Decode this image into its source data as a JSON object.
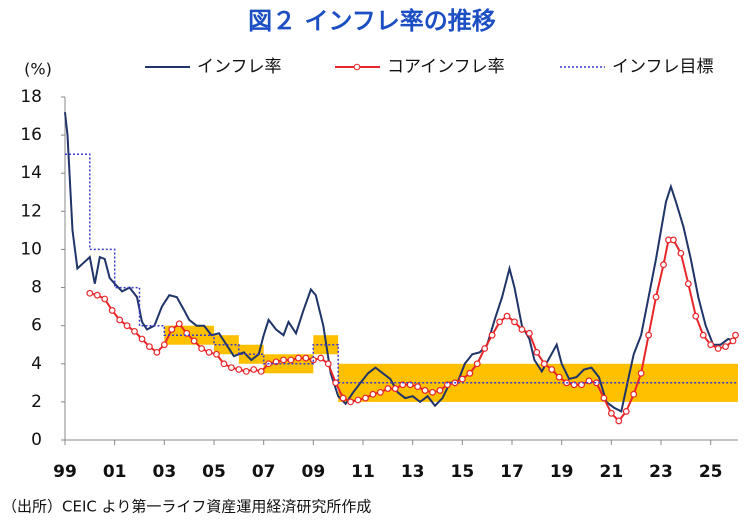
{
  "chart_data": {
    "type": "line",
    "title": "図２ インフレ率の推移",
    "y_label": "(%)",
    "note": "（出所）CEIC より第一ライフ資産運用経済研究所作成",
    "xlim": [
      1999,
      2026.1
    ],
    "ylim": [
      0,
      18
    ],
    "xticks": [
      {
        "value": 1999,
        "label": "99"
      },
      {
        "value": 2001,
        "label": "01"
      },
      {
        "value": 2003,
        "label": "03"
      },
      {
        "value": 2005,
        "label": "05"
      },
      {
        "value": 2007,
        "label": "07"
      },
      {
        "value": 2009,
        "label": "09"
      },
      {
        "value": 2011,
        "label": "11"
      },
      {
        "value": 2013,
        "label": "13"
      },
      {
        "value": 2015,
        "label": "15"
      },
      {
        "value": 2017,
        "label": "17"
      },
      {
        "value": 2019,
        "label": "19"
      },
      {
        "value": 2021,
        "label": "21"
      },
      {
        "value": 2023,
        "label": "23"
      },
      {
        "value": 2025,
        "label": "25"
      }
    ],
    "yticks": [
      0,
      2,
      4,
      6,
      8,
      10,
      12,
      14,
      16,
      18
    ],
    "grid": false,
    "legend": "top-right",
    "series": [
      {
        "name": "インフレ率",
        "color": "#1f3468",
        "style": "solid",
        "x": [
          1999.0,
          1999.1,
          1999.3,
          1999.5,
          1999.75,
          2000.0,
          2000.2,
          2000.4,
          2000.6,
          2000.8,
          2001.0,
          2001.3,
          2001.6,
          2001.9,
          2002.1,
          2002.3,
          2002.6,
          2002.9,
          2003.2,
          2003.5,
          2003.8,
          2004.0,
          2004.3,
          2004.6,
          2004.9,
          2005.2,
          2005.5,
          2005.8,
          2006.2,
          2006.5,
          2006.8,
          2007.0,
          2007.2,
          2007.5,
          2007.8,
          2008.0,
          2008.3,
          2008.6,
          2008.9,
          2009.1,
          2009.4,
          2009.7,
          2010.0,
          2010.3,
          2010.6,
          2010.9,
          2011.2,
          2011.5,
          2011.8,
          2012.1,
          2012.4,
          2012.7,
          2013.0,
          2013.3,
          2013.6,
          2013.9,
          2014.2,
          2014.5,
          2014.8,
          2015.1,
          2015.4,
          2015.7,
          2016.0,
          2016.3,
          2016.6,
          2016.9,
          2017.1,
          2017.4,
          2017.7,
          2017.9,
          2018.2,
          2018.5,
          2018.8,
          2019.0,
          2019.3,
          2019.6,
          2019.9,
          2020.2,
          2020.5,
          2020.8,
          2021.1,
          2021.4,
          2021.7,
          2021.9,
          2022.2,
          2022.5,
          2022.8,
          2023.0,
          2023.2,
          2023.4,
          2023.6,
          2023.9,
          2024.2,
          2024.5,
          2024.8,
          2025.1,
          2025.4,
          2025.7,
          2026.0
        ],
        "values": [
          17.2,
          16,
          11,
          9,
          9.3,
          9.6,
          8.2,
          9.6,
          9.5,
          8.5,
          8.2,
          7.8,
          8.0,
          7.5,
          6.2,
          5.8,
          6.0,
          7.0,
          7.6,
          7.5,
          6.8,
          6.3,
          6.0,
          6.0,
          5.5,
          5.6,
          5.0,
          4.4,
          4.6,
          4.2,
          4.5,
          5.5,
          6.3,
          5.8,
          5.5,
          6.2,
          5.6,
          6.8,
          7.9,
          7.6,
          6.0,
          3.5,
          2.3,
          1.9,
          2.5,
          3.0,
          3.5,
          3.8,
          3.5,
          3.2,
          2.5,
          2.2,
          2.3,
          2.0,
          2.3,
          1.8,
          2.2,
          3.0,
          3.0,
          4.0,
          4.5,
          4.6,
          5.0,
          6.3,
          7.5,
          9.0,
          8.0,
          6.0,
          5.3,
          4.2,
          3.6,
          4.3,
          5.0,
          4.0,
          3.2,
          3.3,
          3.7,
          3.8,
          3.3,
          2.0,
          1.7,
          1.5,
          3.3,
          4.5,
          5.5,
          7.5,
          9.5,
          11.0,
          12.5,
          13.3,
          12.5,
          11.2,
          9.5,
          7.5,
          6.0,
          5.0,
          5.0,
          5.3,
          5.2
        ]
      },
      {
        "name": "コアインフレ率",
        "color": "#e8262a",
        "style": "markers",
        "x": [
          2000.0,
          2000.3,
          2000.6,
          2000.9,
          2001.2,
          2001.5,
          2001.8,
          2002.1,
          2002.4,
          2002.7,
          2003.0,
          2003.3,
          2003.6,
          2003.9,
          2004.2,
          2004.5,
          2004.8,
          2005.1,
          2005.4,
          2005.7,
          2006.0,
          2006.3,
          2006.6,
          2006.9,
          2007.2,
          2007.5,
          2007.8,
          2008.1,
          2008.4,
          2008.7,
          2009.0,
          2009.3,
          2009.6,
          2009.9,
          2010.2,
          2010.5,
          2010.8,
          2011.1,
          2011.4,
          2011.7,
          2012.0,
          2012.3,
          2012.6,
          2012.9,
          2013.2,
          2013.5,
          2013.8,
          2014.1,
          2014.4,
          2014.7,
          2015.0,
          2015.3,
          2015.6,
          2015.9,
          2016.2,
          2016.5,
          2016.8,
          2017.1,
          2017.4,
          2017.7,
          2018.0,
          2018.3,
          2018.6,
          2018.9,
          2019.2,
          2019.5,
          2019.8,
          2020.1,
          2020.4,
          2020.7,
          2021.0,
          2021.3,
          2021.6,
          2021.9,
          2022.2,
          2022.5,
          2022.8,
          2023.1,
          2023.3,
          2023.5,
          2023.8,
          2024.1,
          2024.4,
          2024.7,
          2025.0,
          2025.3,
          2025.6,
          2025.9,
          2026.0
        ],
        "values": [
          7.7,
          7.6,
          7.4,
          6.8,
          6.3,
          6.0,
          5.7,
          5.3,
          4.9,
          4.6,
          5.0,
          5.8,
          6.1,
          5.6,
          5.2,
          4.8,
          4.6,
          4.5,
          4.0,
          3.8,
          3.7,
          3.6,
          3.7,
          3.6,
          4.0,
          4.1,
          4.2,
          4.2,
          4.3,
          4.3,
          4.2,
          4.3,
          4.0,
          3.0,
          2.2,
          2.0,
          2.1,
          2.2,
          2.4,
          2.5,
          2.7,
          2.7,
          2.9,
          2.9,
          2.8,
          2.6,
          2.5,
          2.6,
          2.9,
          3.0,
          3.2,
          3.5,
          4.0,
          4.8,
          5.5,
          6.2,
          6.5,
          6.2,
          5.8,
          5.6,
          4.6,
          4.0,
          3.7,
          3.3,
          3.0,
          2.9,
          2.9,
          3.1,
          3.0,
          2.2,
          1.4,
          1.0,
          1.5,
          2.4,
          3.5,
          5.5,
          7.5,
          9.2,
          10.5,
          10.5,
          9.8,
          8.2,
          6.5,
          5.5,
          5.0,
          4.8,
          4.9,
          5.2,
          5.5
        ]
      },
      {
        "name": "インフレ目標",
        "color": "#3a3acf",
        "style": "dotted",
        "x": [
          1999,
          2000,
          2000,
          2001,
          2001,
          2002,
          2002,
          2003,
          2003,
          2005,
          2005,
          2006,
          2006,
          2007,
          2007,
          2009,
          2009,
          2010,
          2010,
          2026.1
        ],
        "values": [
          15,
          15,
          10,
          10,
          8,
          8,
          6,
          6,
          5.5,
          5.5,
          5,
          5,
          4.5,
          4.5,
          4,
          4,
          5,
          5,
          3,
          3
        ]
      }
    ],
    "band_color": "#ffc000",
    "band": [
      {
        "x": [
          2003,
          2005
        ],
        "low": 5,
        "high": 6
      },
      {
        "x": [
          2005,
          2006
        ],
        "low": 4.5,
        "high": 5.5
      },
      {
        "x": [
          2006,
          2007
        ],
        "low": 4,
        "high": 5
      },
      {
        "x": [
          2007,
          2009
        ],
        "low": 3.5,
        "high": 4.5
      },
      {
        "x": [
          2009,
          2010
        ],
        "low": 4.5,
        "high": 5.5
      },
      {
        "x": [
          2010,
          2026.1
        ],
        "low": 2,
        "high": 4
      }
    ]
  }
}
